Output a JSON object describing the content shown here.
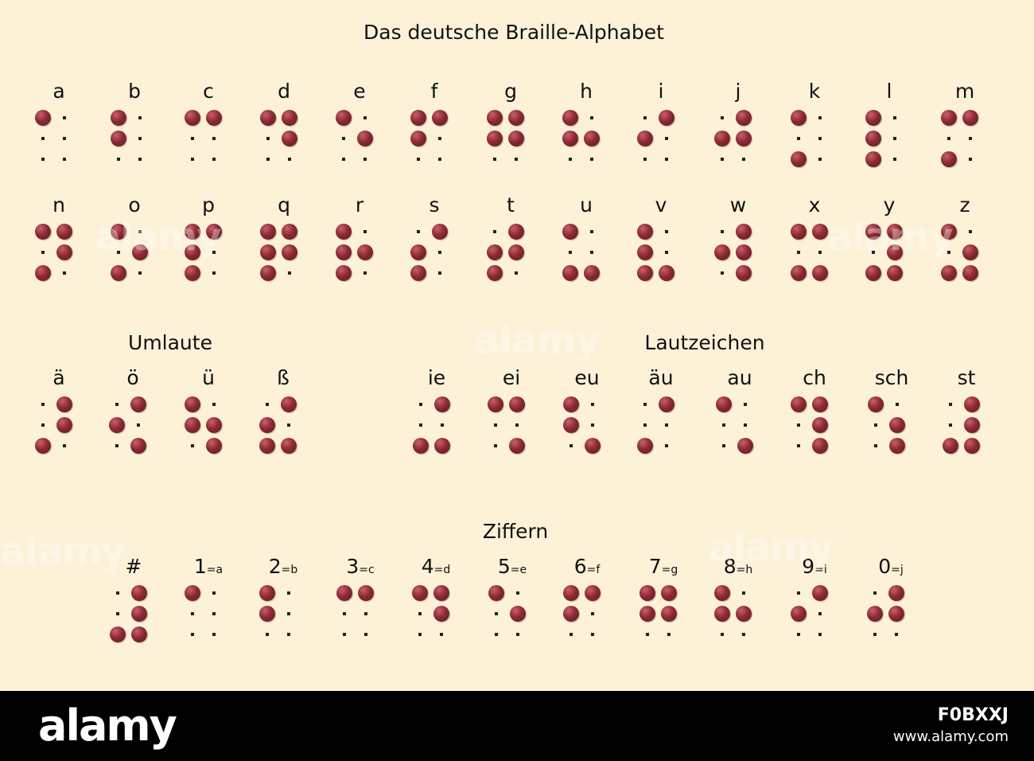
{
  "title": "Das deutsche Braille-Alphabet",
  "colors": {
    "background": "#fdf1d8",
    "dot": "#7d1f2b",
    "footer": "#000000"
  },
  "alphabet_row1": [
    {
      "label": "a",
      "dots": [
        1
      ]
    },
    {
      "label": "b",
      "dots": [
        1,
        2
      ]
    },
    {
      "label": "c",
      "dots": [
        1,
        4
      ]
    },
    {
      "label": "d",
      "dots": [
        1,
        4,
        5
      ]
    },
    {
      "label": "e",
      "dots": [
        1,
        5
      ]
    },
    {
      "label": "f",
      "dots": [
        1,
        2,
        4
      ]
    },
    {
      "label": "g",
      "dots": [
        1,
        2,
        4,
        5
      ]
    },
    {
      "label": "h",
      "dots": [
        1,
        2,
        5
      ]
    },
    {
      "label": "i",
      "dots": [
        2,
        4
      ]
    },
    {
      "label": "j",
      "dots": [
        2,
        4,
        5
      ]
    },
    {
      "label": "k",
      "dots": [
        1,
        3
      ]
    },
    {
      "label": "l",
      "dots": [
        1,
        2,
        3
      ]
    },
    {
      "label": "m",
      "dots": [
        1,
        3,
        4
      ]
    }
  ],
  "alphabet_row2": [
    {
      "label": "n",
      "dots": [
        1,
        3,
        4,
        5
      ]
    },
    {
      "label": "o",
      "dots": [
        1,
        3,
        5
      ]
    },
    {
      "label": "p",
      "dots": [
        1,
        2,
        3,
        4
      ]
    },
    {
      "label": "q",
      "dots": [
        1,
        2,
        3,
        4,
        5
      ]
    },
    {
      "label": "r",
      "dots": [
        1,
        2,
        3,
        5
      ]
    },
    {
      "label": "s",
      "dots": [
        2,
        3,
        4
      ]
    },
    {
      "label": "t",
      "dots": [
        2,
        3,
        4,
        5
      ]
    },
    {
      "label": "u",
      "dots": [
        1,
        3,
        6
      ]
    },
    {
      "label": "v",
      "dots": [
        1,
        2,
        3,
        6
      ]
    },
    {
      "label": "w",
      "dots": [
        2,
        4,
        5,
        6
      ]
    },
    {
      "label": "x",
      "dots": [
        1,
        3,
        4,
        6
      ]
    },
    {
      "label": "y",
      "dots": [
        1,
        3,
        4,
        5,
        6
      ]
    },
    {
      "label": "z",
      "dots": [
        1,
        3,
        5,
        6
      ]
    }
  ],
  "umlaute": {
    "title": "Umlaute",
    "items": [
      {
        "label": "ä",
        "dots": [
          3,
          4,
          5
        ]
      },
      {
        "label": "ö",
        "dots": [
          2,
          4,
          6
        ]
      },
      {
        "label": "ü",
        "dots": [
          1,
          2,
          5,
          6
        ]
      },
      {
        "label": "ß",
        "dots": [
          2,
          3,
          4,
          6
        ]
      }
    ]
  },
  "lautzeichen": {
    "title": "Lautzeichen",
    "items": [
      {
        "label": "ie",
        "dots": [
          3,
          4,
          6
        ]
      },
      {
        "label": "ei",
        "dots": [
          1,
          4,
          6
        ]
      },
      {
        "label": "eu",
        "dots": [
          1,
          2,
          6
        ]
      },
      {
        "label": "äu",
        "dots": [
          3,
          4
        ]
      },
      {
        "label": "au",
        "dots": [
          1,
          6
        ]
      },
      {
        "label": "ch",
        "dots": [
          1,
          4,
          5,
          6
        ]
      },
      {
        "label": "sch",
        "dots": [
          1,
          5,
          6
        ]
      },
      {
        "label": "st",
        "dots": [
          3,
          4,
          5,
          6
        ]
      }
    ]
  },
  "ziffern": {
    "title": "Ziffern",
    "items": [
      {
        "label": "#",
        "sub": "",
        "dots": [
          3,
          4,
          5,
          6
        ]
      },
      {
        "label": "1",
        "sub": "=a",
        "dots": [
          1
        ]
      },
      {
        "label": "2",
        "sub": "=b",
        "dots": [
          1,
          2
        ]
      },
      {
        "label": "3",
        "sub": "=c",
        "dots": [
          1,
          4
        ]
      },
      {
        "label": "4",
        "sub": "=d",
        "dots": [
          1,
          4,
          5
        ]
      },
      {
        "label": "5",
        "sub": "=e",
        "dots": [
          1,
          5
        ]
      },
      {
        "label": "6",
        "sub": "=f",
        "dots": [
          1,
          2,
          4
        ]
      },
      {
        "label": "7",
        "sub": "=g",
        "dots": [
          1,
          2,
          4,
          5
        ]
      },
      {
        "label": "8",
        "sub": "=h",
        "dots": [
          1,
          2,
          5
        ]
      },
      {
        "label": "9",
        "sub": "=i",
        "dots": [
          2,
          4
        ]
      },
      {
        "label": "0",
        "sub": "=j",
        "dots": [
          2,
          4,
          5
        ]
      }
    ]
  },
  "watermark_text": "alamy",
  "footer": {
    "logo": "alamy",
    "image_id": "F0BXXJ",
    "url": "www.alamy.com"
  }
}
